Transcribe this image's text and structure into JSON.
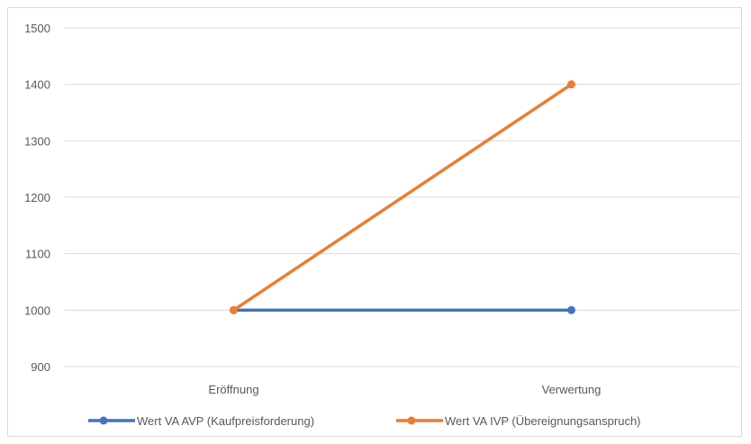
{
  "chart_data": {
    "type": "line",
    "title": "",
    "xlabel": "",
    "ylabel": "",
    "categories": [
      "Eröffnung",
      "Verwertung"
    ],
    "ylim": [
      900,
      1500
    ],
    "yticks": [
      900,
      1000,
      1100,
      1200,
      1300,
      1400,
      1500
    ],
    "grid": true,
    "legend_position": "bottom",
    "series": [
      {
        "name": "Wert VA AVP (Kaufpreisforderung)",
        "values": [
          1000,
          1000
        ],
        "color": "#4472c4"
      },
      {
        "name": "Wert VA IVP (Übereignungsanspruch)",
        "values": [
          1000,
          1400
        ],
        "color": "#ed7d31"
      }
    ]
  }
}
